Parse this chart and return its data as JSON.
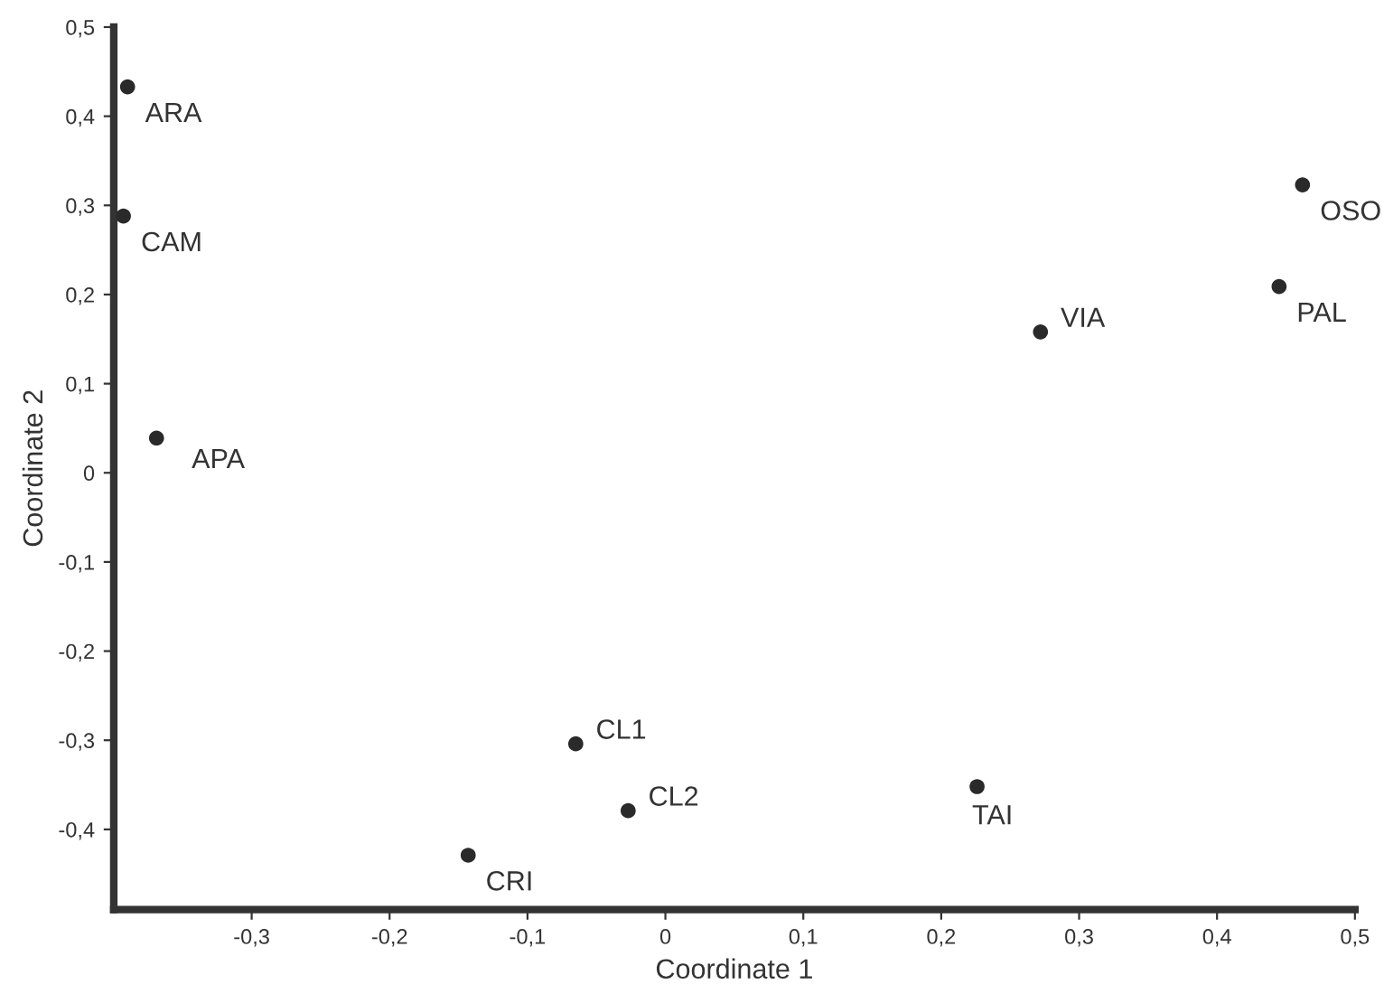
{
  "chart_data": {
    "type": "scatter",
    "xlabel": "Coordinate 1",
    "ylabel": "Coordinate 2",
    "series": [
      {
        "name": "ARA",
        "color": "#2a2a2a",
        "x": [
          -0.39
        ],
        "values": [
          0.433
        ]
      },
      {
        "name": "CAM",
        "color": "#2a2a2a",
        "x": [
          -0.393
        ],
        "values": [
          0.288
        ]
      },
      {
        "name": "APA",
        "color": "#2a2a2a",
        "x": [
          -0.369
        ],
        "values": [
          0.039
        ]
      },
      {
        "name": "CL1",
        "color": "#2a2a2a",
        "x": [
          -0.065
        ],
        "values": [
          -0.304
        ]
      },
      {
        "name": "CL2",
        "color": "#2a2a2a",
        "x": [
          -0.027
        ],
        "values": [
          -0.379
        ]
      },
      {
        "name": "CRI",
        "color": "#2a2a2a",
        "x": [
          -0.143
        ],
        "values": [
          -0.429
        ]
      },
      {
        "name": "TAI",
        "color": "#2a2a2a",
        "x": [
          0.226
        ],
        "values": [
          -0.352
        ]
      },
      {
        "name": "VIA",
        "color": "#2a2a2a",
        "x": [
          0.272
        ],
        "values": [
          0.158
        ]
      },
      {
        "name": "PAL",
        "color": "#2a2a2a",
        "x": [
          0.445
        ],
        "values": [
          0.209
        ]
      },
      {
        "name": "OSO",
        "color": "#2a2a2a",
        "x": [
          0.462
        ],
        "values": [
          0.323
        ]
      }
    ],
    "marker": "circle",
    "grid": false,
    "legend": false,
    "xlim": [
      -0.4,
      0.5
    ],
    "ylim": [
      -0.49,
      0.5
    ],
    "xticks": [
      {
        "value": -0.3,
        "label": "-0,3"
      },
      {
        "value": -0.2,
        "label": "-0,2"
      },
      {
        "value": -0.1,
        "label": "-0,1"
      },
      0,
      {
        "value": 0.1,
        "label": "0,1"
      },
      {
        "value": 0.2,
        "label": "0,2"
      },
      {
        "value": 0.3,
        "label": "0,3"
      },
      {
        "value": 0.4,
        "label": "0,4"
      },
      {
        "value": 0.5,
        "label": "0,5"
      }
    ],
    "yticks": [
      {
        "value": -0.4,
        "label": "-0,4"
      },
      {
        "value": -0.3,
        "label": "-0,3"
      },
      {
        "value": -0.2,
        "label": "-0,2"
      },
      {
        "value": -0.1,
        "label": "-0,1"
      },
      0,
      {
        "value": 0.1,
        "label": "0,1"
      },
      {
        "value": 0.2,
        "label": "0,2"
      },
      {
        "value": 0.3,
        "label": "0,3"
      },
      {
        "value": 0.4,
        "label": "0,4"
      },
      {
        "value": 0.5,
        "label": "0,5"
      }
    ]
  }
}
